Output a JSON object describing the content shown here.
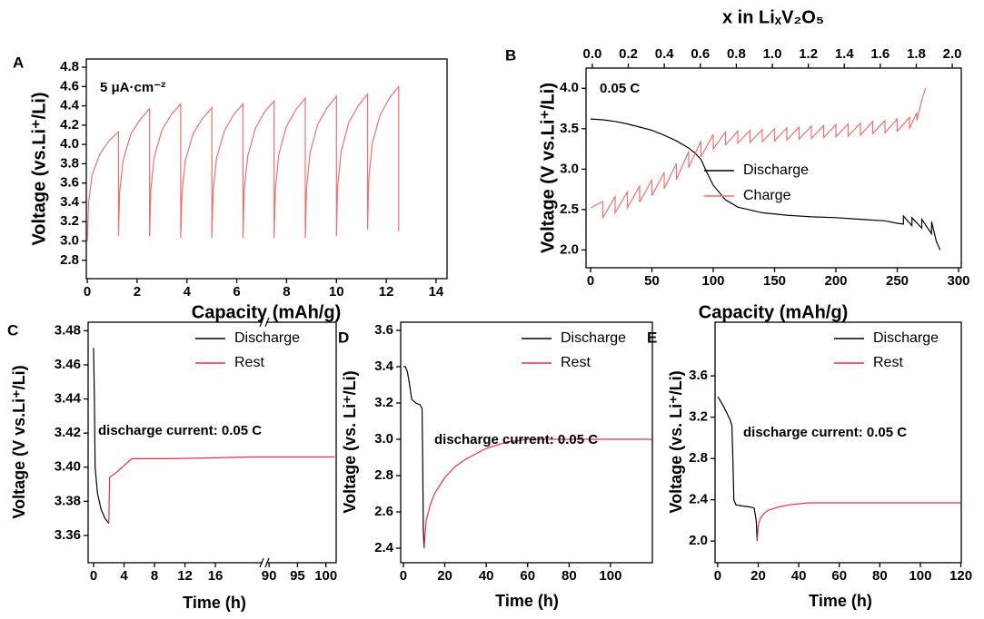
{
  "chart_data": [
    {
      "type": "line",
      "label": "A",
      "annotation": "5 μA·cm⁻²",
      "xlabel": "Capacity (mAh/g)",
      "ylabel": "Voltage (vs.Li⁺/Li)",
      "xlim": [
        -0.04,
        14.44
      ],
      "xticks": [
        0,
        2,
        4,
        6,
        8,
        10,
        12,
        14
      ],
      "ylim": [
        2.61,
        4.885
      ],
      "yticks": [
        2.8,
        {
          "value": 3,
          "label": "3.0"
        },
        3.2,
        3.4,
        3.6,
        3.8,
        {
          "value": 4,
          "label": "4.0"
        },
        4.2,
        4.4,
        4.6,
        4.8
      ],
      "grid": false,
      "series": [
        {
          "color": "#f07070",
          "x": [
            0,
            0.05,
            0.19,
            0.5,
            0.875,
            1.25,
            1.25,
            1.3,
            1.44,
            1.75,
            2.125,
            2.5,
            2.5,
            2.55,
            2.69,
            3.0,
            3.375,
            3.75,
            3.75,
            3.8,
            3.94,
            4.25,
            4.625,
            5.0,
            5.0,
            5.05,
            5.19,
            5.5,
            5.875,
            6.25,
            6.25,
            6.3,
            6.44,
            6.75,
            7.125,
            7.5,
            7.5,
            7.55,
            7.69,
            8.0,
            8.375,
            8.75,
            8.75,
            8.8,
            8.94,
            9.25,
            9.625,
            10.0,
            10.0,
            10.05,
            10.19,
            10.5,
            10.875,
            11.25,
            11.25,
            11.3,
            11.44,
            11.75,
            12.125,
            12.5,
            12.5
          ],
          "values": [
            3.0,
            3.4,
            3.68,
            3.9,
            4.04,
            4.13,
            3.05,
            3.51,
            3.84,
            4.11,
            4.26,
            4.37,
            3.05,
            3.53,
            3.87,
            4.15,
            4.31,
            4.42,
            3.03,
            3.5,
            3.84,
            4.11,
            4.27,
            4.38,
            3.03,
            3.52,
            3.86,
            4.14,
            4.31,
            4.42,
            3.03,
            3.53,
            3.88,
            4.17,
            4.34,
            4.45,
            3.03,
            3.54,
            3.9,
            4.19,
            4.36,
            4.48,
            3.03,
            3.54,
            3.91,
            4.21,
            4.38,
            4.5,
            3.05,
            3.56,
            3.93,
            4.23,
            4.4,
            4.52,
            3.12,
            3.64,
            4.01,
            4.3,
            4.48,
            4.6,
            3.1
          ]
        }
      ]
    },
    {
      "type": "line",
      "label": "B",
      "annotation": "0.05 C",
      "xlabel": "Capacity (mAh/g)",
      "ylabel": "Voltage (V vs.Li⁺/Li)",
      "x2label": "x in LiₓV₂O₅",
      "xlim": [
        -3.7,
        302.2
      ],
      "xticks": [
        0,
        50,
        100,
        150,
        200,
        250,
        300
      ],
      "x2lim": [
        -0.035,
        2.05
      ],
      "x2ticks": [
        {
          "value": 0,
          "label": "0.0"
        },
        0.2,
        0.4,
        0.6,
        0.8,
        {
          "value": 1,
          "label": "1.0"
        },
        1.2,
        1.4,
        1.6,
        1.8,
        {
          "value": 2,
          "label": "2.0"
        }
      ],
      "ylim": [
        1.78,
        4.25
      ],
      "yticks": [
        {
          "value": 2,
          "label": "2.0"
        },
        2.5,
        {
          "value": 3,
          "label": "3.0"
        },
        3.5,
        {
          "value": 4,
          "label": "4.0"
        }
      ],
      "grid": false,
      "legend": "center right",
      "series": [
        {
          "name": "Discharge",
          "color": "#000000",
          "x": [
            0,
            10,
            20,
            30,
            40,
            50,
            60,
            70,
            80,
            85,
            90,
            95,
            100,
            110,
            120,
            140,
            160,
            180,
            200,
            220,
            240,
            250,
            255,
            255,
            262,
            262,
            270,
            270,
            278,
            278,
            282,
            285
          ],
          "values": [
            3.62,
            3.61,
            3.59,
            3.56,
            3.52,
            3.48,
            3.42,
            3.35,
            3.26,
            3.2,
            3.12,
            2.95,
            2.8,
            2.62,
            2.53,
            2.46,
            2.43,
            2.41,
            2.4,
            2.38,
            2.36,
            2.33,
            2.32,
            2.42,
            2.3,
            2.4,
            2.27,
            2.38,
            2.2,
            2.35,
            2.1,
            2.0
          ]
        },
        {
          "name": "Charge",
          "color": "#f07070",
          "x": [
            0,
            10,
            10,
            20,
            20,
            30,
            30,
            40,
            40,
            50,
            50,
            60,
            60,
            70,
            70,
            80,
            80,
            90,
            90,
            100,
            100,
            110,
            110,
            120,
            120,
            130,
            130,
            140,
            140,
            150,
            150,
            160,
            160,
            170,
            170,
            180,
            180,
            190,
            190,
            200,
            200,
            210,
            210,
            220,
            220,
            230,
            230,
            240,
            240,
            250,
            250,
            260,
            260,
            266,
            266,
            270,
            273
          ],
          "values": [
            2.52,
            2.6,
            2.4,
            2.66,
            2.46,
            2.72,
            2.52,
            2.79,
            2.59,
            2.87,
            2.67,
            2.96,
            2.76,
            3.07,
            2.87,
            3.22,
            3.02,
            3.35,
            3.15,
            3.43,
            3.25,
            3.46,
            3.3,
            3.47,
            3.32,
            3.48,
            3.33,
            3.49,
            3.34,
            3.5,
            3.35,
            3.51,
            3.36,
            3.52,
            3.37,
            3.53,
            3.38,
            3.54,
            3.39,
            3.55,
            3.4,
            3.56,
            3.41,
            3.57,
            3.42,
            3.59,
            3.44,
            3.6,
            3.45,
            3.62,
            3.47,
            3.64,
            3.5,
            3.7,
            3.6,
            3.85,
            4.0
          ]
        }
      ]
    },
    {
      "type": "line",
      "label": "C",
      "annotation": "discharge current: 0.05 C",
      "xlabel": "Time (h)",
      "ylabel": "Voltage (V vs.Li⁺/Li)",
      "x_segments": [
        {
          "xlim": [
            -0.72,
            22.2
          ],
          "xticks": [
            0,
            4,
            8,
            12,
            16
          ]
        },
        {
          "xlim": [
            89.5,
            101.8
          ],
          "xticks": [
            90,
            95,
            100
          ]
        }
      ],
      "ylim": [
        3.344,
        3.485
      ],
      "yticks": [
        3.36,
        3.38,
        {
          "value": 3.4,
          "label": "3.40"
        },
        3.42,
        3.44,
        3.46,
        3.48
      ],
      "grid": false,
      "legend": "upper right",
      "series": [
        {
          "name": "Discharge",
          "color": "#000000",
          "x": [
            0,
            0.1,
            0.2,
            0.5,
            1.0,
            1.5,
            2.0
          ],
          "values": [
            3.47,
            3.44,
            3.4,
            3.385,
            3.375,
            3.37,
            3.367
          ]
        },
        {
          "name": "Rest",
          "color": "#e8304a",
          "x": [
            2.0,
            2.1,
            3,
            4,
            5,
            6,
            10,
            21,
            90,
            101.5
          ],
          "values": [
            3.367,
            3.394,
            3.397,
            3.401,
            3.405,
            3.405,
            3.405,
            3.406,
            3.406,
            3.406
          ]
        }
      ]
    },
    {
      "type": "line",
      "label": "D",
      "annotation": "discharge current: 0.05 C",
      "xlabel": "Time (h)",
      "ylabel": "Voltage (vs. Li⁺/Li)",
      "xlim": [
        -1.3,
        120.2
      ],
      "xticks": [
        0,
        20,
        40,
        60,
        80,
        100
      ],
      "ylim": [
        2.32,
        3.645
      ],
      "yticks": [
        2.4,
        2.6,
        2.8,
        {
          "value": 3,
          "label": "3.0"
        },
        3.2,
        3.4,
        3.6
      ],
      "grid": false,
      "legend": "upper right",
      "series": [
        {
          "name": "Discharge",
          "color": "#000000",
          "x": [
            0,
            1,
            2,
            3,
            4,
            6,
            8,
            9,
            9.3,
            9.6,
            10
          ],
          "values": [
            3.4,
            3.4,
            3.37,
            3.3,
            3.22,
            3.2,
            3.19,
            3.17,
            2.9,
            2.5,
            2.4
          ]
        },
        {
          "name": "Rest",
          "color": "#e8304a",
          "x": [
            10,
            10.5,
            11,
            13,
            15,
            20,
            25,
            30,
            40,
            50,
            60,
            80,
            100,
            120
          ],
          "values": [
            2.4,
            2.48,
            2.55,
            2.64,
            2.7,
            2.79,
            2.85,
            2.89,
            2.95,
            2.985,
            3.0,
            3.0,
            3.0,
            3.0
          ]
        }
      ]
    },
    {
      "type": "line",
      "label": "E",
      "annotation": "discharge current: 0.05 C",
      "xlabel": "Time (h)",
      "ylabel": "Voltage (vs. Li⁺/Li)",
      "xlim": [
        -1.3,
        120.2
      ],
      "xticks": [
        0,
        20,
        40,
        60,
        80,
        100,
        120
      ],
      "ylim": [
        1.79,
        4.12
      ],
      "yticks": [
        {
          "value": 2,
          "label": "2.0"
        },
        2.4,
        2.8,
        3.2,
        3.6
      ],
      "grid": false,
      "legend": "upper right",
      "series": [
        {
          "name": "Discharge",
          "color": "#000000",
          "x": [
            0,
            1,
            3,
            5,
            6,
            7,
            7.5,
            8,
            9,
            12,
            16,
            18,
            19,
            19.5
          ],
          "values": [
            3.4,
            3.37,
            3.3,
            3.22,
            3.18,
            3.12,
            2.8,
            2.4,
            2.35,
            2.34,
            2.33,
            2.32,
            2.2,
            2.0
          ]
        },
        {
          "name": "Rest",
          "color": "#e8304a",
          "x": [
            19.5,
            20,
            21,
            23,
            25,
            30,
            35,
            45,
            60,
            80,
            100,
            120
          ],
          "values": [
            2.0,
            2.15,
            2.22,
            2.27,
            2.3,
            2.33,
            2.35,
            2.37,
            2.37,
            2.37,
            2.37,
            2.37
          ]
        }
      ]
    }
  ]
}
